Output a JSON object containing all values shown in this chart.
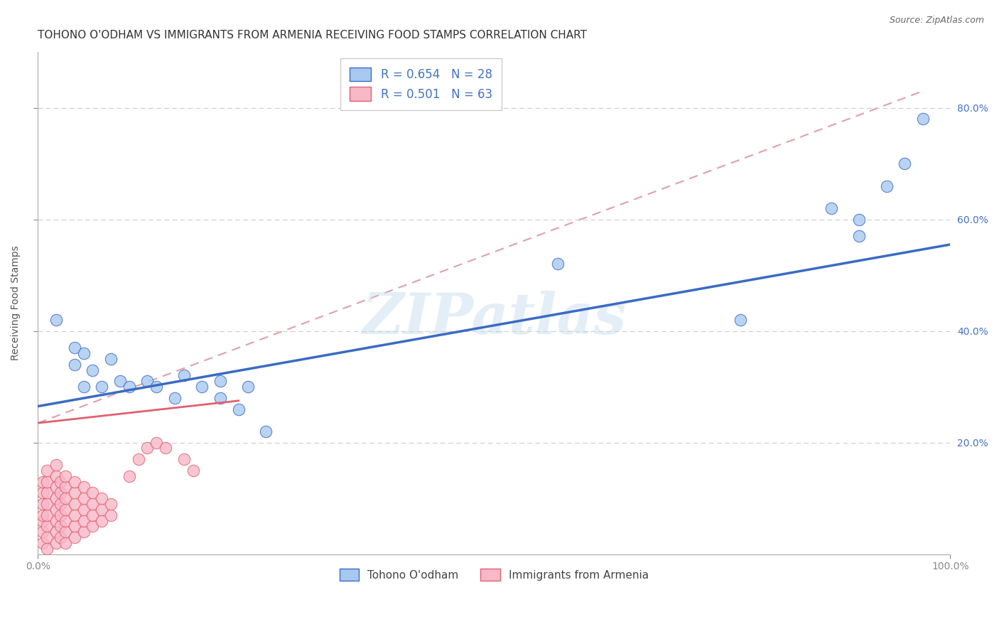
{
  "title": "TOHONO O'ODHAM VS IMMIGRANTS FROM ARMENIA RECEIVING FOOD STAMPS CORRELATION CHART",
  "source": "Source: ZipAtlas.com",
  "ylabel": "Receiving Food Stamps",
  "xlabel": "",
  "xlim": [
    0.0,
    1.0
  ],
  "ylim": [
    0.0,
    0.9
  ],
  "watermark": "ZIPatlas",
  "blue_color": "#A8C8F0",
  "pink_color": "#F7B8C8",
  "blue_line_color": "#3A6BC4",
  "pink_line_color": "#E06070",
  "dashed_line_color": "#E0A0A8",
  "legend_blue_label": "R = 0.654   N = 28",
  "legend_pink_label": "R = 0.501   N = 63",
  "legend_blue_label_bottom": "Tohono O'odham",
  "legend_pink_label_bottom": "Immigrants from Armenia",
  "blue_dots": [
    [
      0.02,
      0.42
    ],
    [
      0.04,
      0.37
    ],
    [
      0.04,
      0.34
    ],
    [
      0.05,
      0.3
    ],
    [
      0.05,
      0.36
    ],
    [
      0.06,
      0.33
    ],
    [
      0.07,
      0.3
    ],
    [
      0.08,
      0.35
    ],
    [
      0.09,
      0.31
    ],
    [
      0.1,
      0.3
    ],
    [
      0.12,
      0.31
    ],
    [
      0.13,
      0.3
    ],
    [
      0.15,
      0.28
    ],
    [
      0.16,
      0.32
    ],
    [
      0.18,
      0.3
    ],
    [
      0.2,
      0.28
    ],
    [
      0.2,
      0.31
    ],
    [
      0.22,
      0.26
    ],
    [
      0.23,
      0.3
    ],
    [
      0.25,
      0.22
    ],
    [
      0.57,
      0.52
    ],
    [
      0.77,
      0.42
    ],
    [
      0.87,
      0.62
    ],
    [
      0.9,
      0.6
    ],
    [
      0.9,
      0.57
    ],
    [
      0.93,
      0.66
    ],
    [
      0.95,
      0.7
    ],
    [
      0.97,
      0.78
    ]
  ],
  "pink_dots": [
    [
      0.005,
      0.02
    ],
    [
      0.005,
      0.04
    ],
    [
      0.005,
      0.06
    ],
    [
      0.005,
      0.07
    ],
    [
      0.005,
      0.09
    ],
    [
      0.005,
      0.11
    ],
    [
      0.005,
      0.13
    ],
    [
      0.01,
      0.01
    ],
    [
      0.01,
      0.03
    ],
    [
      0.01,
      0.05
    ],
    [
      0.01,
      0.07
    ],
    [
      0.01,
      0.09
    ],
    [
      0.01,
      0.11
    ],
    [
      0.01,
      0.13
    ],
    [
      0.01,
      0.15
    ],
    [
      0.02,
      0.02
    ],
    [
      0.02,
      0.04
    ],
    [
      0.02,
      0.06
    ],
    [
      0.02,
      0.08
    ],
    [
      0.02,
      0.1
    ],
    [
      0.02,
      0.12
    ],
    [
      0.02,
      0.14
    ],
    [
      0.02,
      0.16
    ],
    [
      0.025,
      0.03
    ],
    [
      0.025,
      0.05
    ],
    [
      0.025,
      0.07
    ],
    [
      0.025,
      0.09
    ],
    [
      0.025,
      0.11
    ],
    [
      0.025,
      0.13
    ],
    [
      0.03,
      0.02
    ],
    [
      0.03,
      0.04
    ],
    [
      0.03,
      0.06
    ],
    [
      0.03,
      0.08
    ],
    [
      0.03,
      0.1
    ],
    [
      0.03,
      0.12
    ],
    [
      0.03,
      0.14
    ],
    [
      0.04,
      0.03
    ],
    [
      0.04,
      0.05
    ],
    [
      0.04,
      0.07
    ],
    [
      0.04,
      0.09
    ],
    [
      0.04,
      0.11
    ],
    [
      0.04,
      0.13
    ],
    [
      0.05,
      0.04
    ],
    [
      0.05,
      0.06
    ],
    [
      0.05,
      0.08
    ],
    [
      0.05,
      0.1
    ],
    [
      0.05,
      0.12
    ],
    [
      0.06,
      0.05
    ],
    [
      0.06,
      0.07
    ],
    [
      0.06,
      0.09
    ],
    [
      0.06,
      0.11
    ],
    [
      0.07,
      0.06
    ],
    [
      0.07,
      0.08
    ],
    [
      0.07,
      0.1
    ],
    [
      0.08,
      0.07
    ],
    [
      0.08,
      0.09
    ],
    [
      0.1,
      0.14
    ],
    [
      0.11,
      0.17
    ],
    [
      0.12,
      0.19
    ],
    [
      0.13,
      0.2
    ],
    [
      0.14,
      0.19
    ],
    [
      0.16,
      0.17
    ],
    [
      0.17,
      0.15
    ]
  ],
  "blue_line": {
    "x0": 0.0,
    "x1": 1.0,
    "y0": 0.265,
    "y1": 0.555
  },
  "pink_line": {
    "x0": 0.0,
    "x1": 0.22,
    "y0": 0.235,
    "y1": 0.275
  },
  "dashed_line": {
    "x0": 0.0,
    "x1": 0.97,
    "y0": 0.235,
    "y1": 0.83
  },
  "grid_yticks": [
    0.2,
    0.4,
    0.6,
    0.8
  ],
  "title_fontsize": 11,
  "axis_fontsize": 10,
  "tick_fontsize": 10,
  "background_color": "#FFFFFF"
}
